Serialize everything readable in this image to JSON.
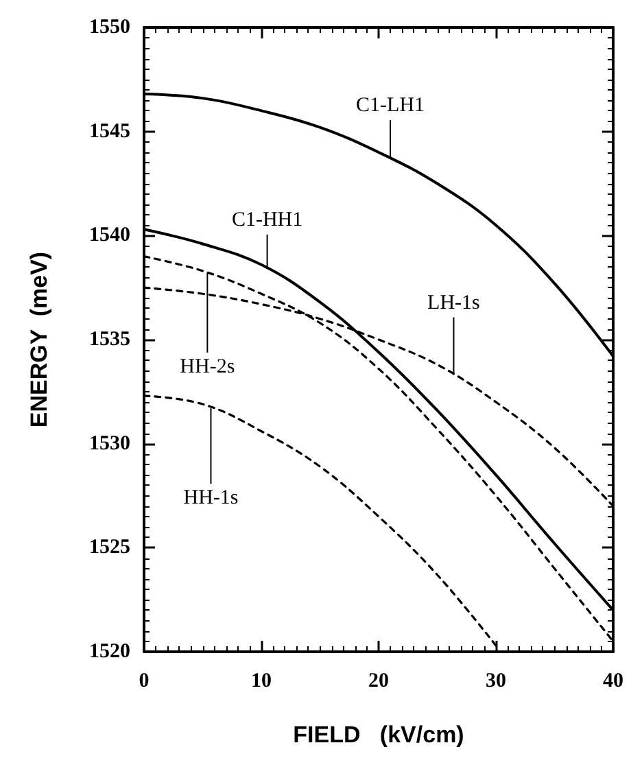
{
  "chart_data": {
    "type": "line",
    "xlabel": "FIELD   (kV/cm)",
    "ylabel": "ENERGY  (meV)",
    "x": [
      0,
      5,
      10,
      15,
      20,
      25,
      30,
      35,
      40
    ],
    "xlim": [
      0,
      40
    ],
    "xticks": [
      0,
      10,
      20,
      30,
      40
    ],
    "ylim": [
      1520,
      1550
    ],
    "yticks": [
      1520,
      1525,
      1530,
      1535,
      1540,
      1545,
      1550
    ],
    "grid": false,
    "marker": "none",
    "series": [
      {
        "color": "#000000",
        "line_style": "solid",
        "values": [
          1546.8,
          1546.6,
          1546.0,
          1545.2,
          1544.0,
          1542.5,
          1540.5,
          1537.7,
          1534.2
        ]
      },
      {
        "color": "#000000",
        "line_style": "solid",
        "values": [
          1540.3,
          1539.6,
          1538.6,
          1536.8,
          1534.4,
          1531.6,
          1528.5,
          1525.2,
          1522.0
        ]
      },
      {
        "color": "#000000",
        "line_style": "dashed",
        "values": [
          1539.0,
          1538.3,
          1537.2,
          1535.8,
          1533.6,
          1530.7,
          1527.5,
          1524.0,
          1520.5
        ]
      },
      {
        "color": "#000000",
        "line_style": "dashed",
        "values": [
          1537.5,
          1537.2,
          1536.7,
          1536.0,
          1535.0,
          1533.8,
          1532.0,
          1529.8,
          1527.0
        ]
      },
      {
        "color": "#000000",
        "line_style": "dashed",
        "x": [
          0,
          5,
          10,
          15,
          20,
          25,
          30
        ],
        "values": [
          1532.3,
          1531.9,
          1530.6,
          1528.9,
          1526.5,
          1523.7,
          1520.3
        ]
      }
    ],
    "annotations": [
      {
        "text": "C1-LH1",
        "x": 21,
        "y": 1543.7
      },
      {
        "text": "C1-HH1",
        "x": 10.5,
        "y": 1538.4
      },
      {
        "text": "LH-1s",
        "x": 26.4,
        "y": 1533.3
      },
      {
        "text": "HH-2s",
        "x": 5.4,
        "y": 1538.2
      },
      {
        "text": "HH-1s",
        "x": 5.7,
        "y": 1531.7
      }
    ]
  }
}
